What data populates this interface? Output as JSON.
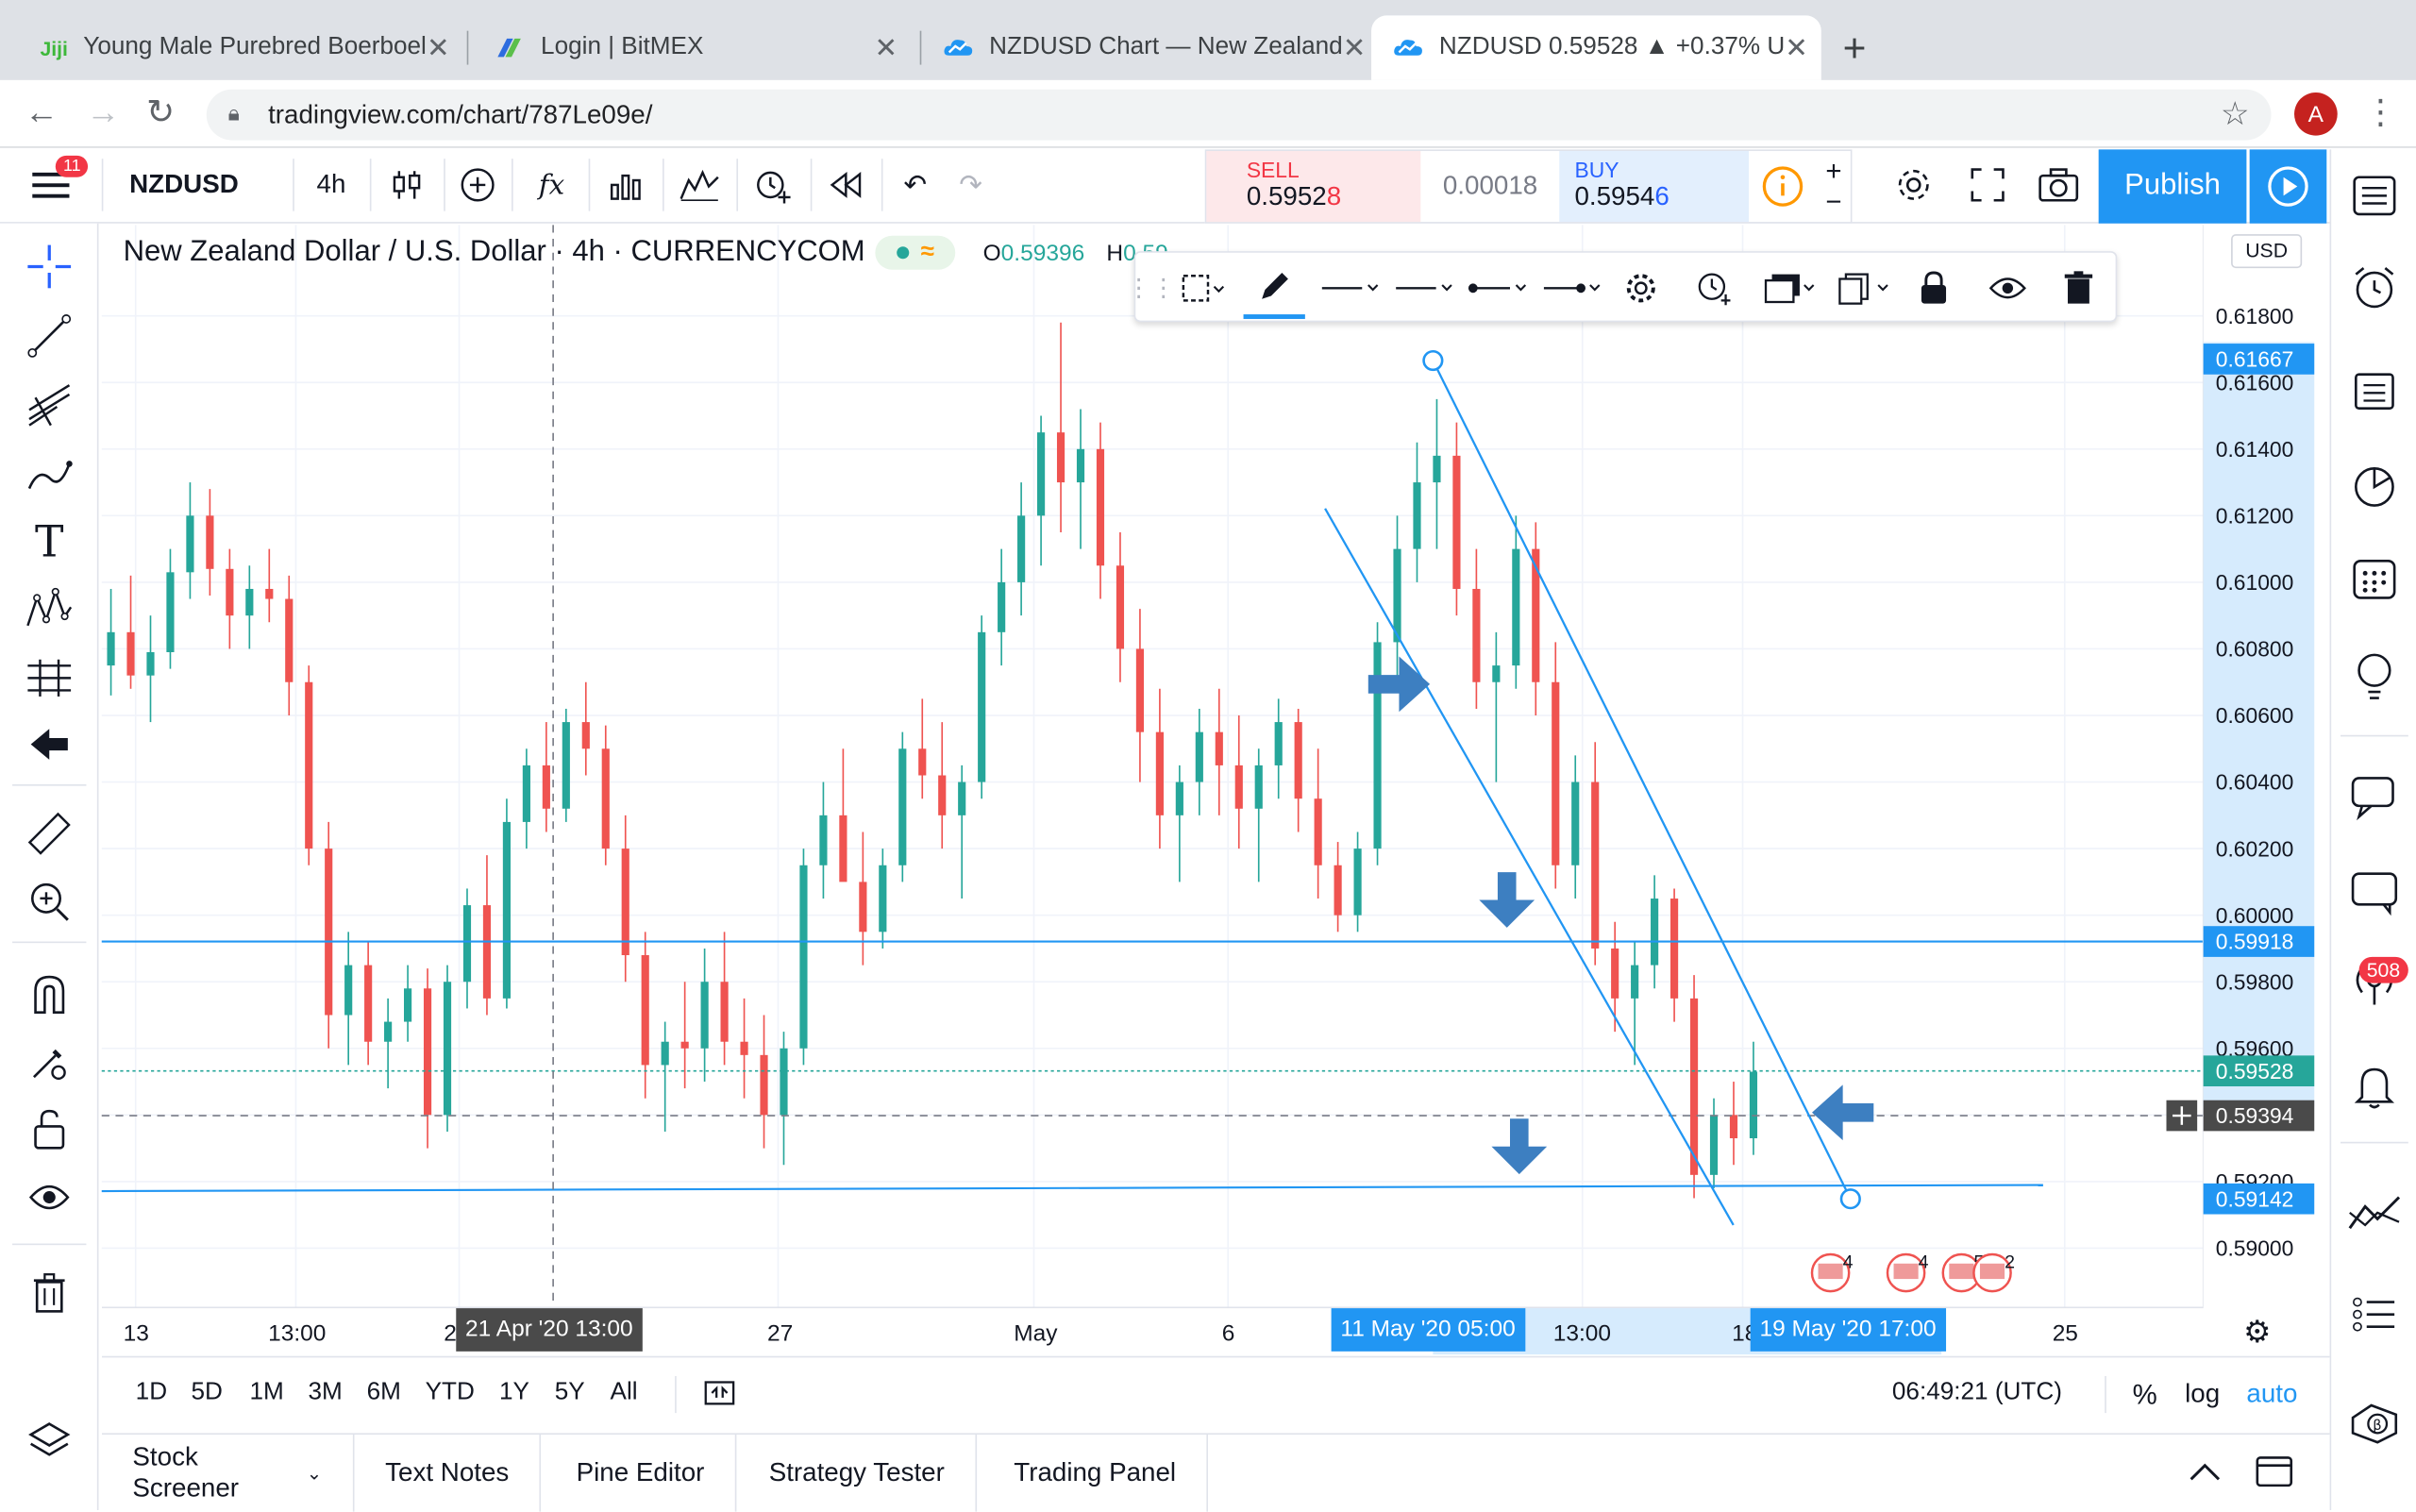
{
  "browser": {
    "tabs": [
      {
        "title": "Young Male Purebred Boerboel",
        "favicon": "Jiji"
      },
      {
        "title": "Login | BitMEX",
        "favicon": "bitmex-icon"
      },
      {
        "title": "NZDUSD Chart — New Zealand",
        "favicon": "tradingview-cloud-icon"
      },
      {
        "title": "NZDUSD 0.59528 ▲ +0.37% U",
        "favicon": "tradingview-cloud-icon",
        "active": true
      }
    ],
    "url": "tradingview.com/chart/787Le09e/",
    "avatar_letter": "A"
  },
  "toolbar": {
    "menu_badge": "11",
    "symbol": "NZDUSD",
    "interval": "4h",
    "sell_label": "SELL",
    "sell_price": "0.5952",
    "sell_price_last": "8",
    "spread": "0.00018",
    "buy_label": "BUY",
    "buy_price": "0.5954",
    "buy_price_last": "6",
    "publish_label": "Publish"
  },
  "legend": {
    "title": "New Zealand Dollar / U.S. Dollar · 4h · CURRENCYCOM",
    "open_label": "O",
    "open_value": "0.59396",
    "high_label": "H",
    "high_value": "0.59...",
    "currency": "USD"
  },
  "price_axis": {
    "ticks": [
      "0.61800",
      "0.61600",
      "0.61400",
      "0.61200",
      "0.61000",
      "0.60800",
      "0.60600",
      "0.60400",
      "0.60200",
      "0.60000",
      "0.59800",
      "0.59600",
      "0.59200",
      "0.59000"
    ],
    "tags": [
      {
        "value": "0.61667",
        "color": "#2196f3"
      },
      {
        "value": "0.59918",
        "color": "#2196f3"
      },
      {
        "value": "0.59528",
        "color": "#26a69a"
      },
      {
        "value": "0.59394",
        "color": "#4a4a4a"
      },
      {
        "value": "0.59142",
        "color": "#2196f3"
      }
    ]
  },
  "time_axis": {
    "labels": [
      "13",
      "13:00",
      "2",
      "27",
      "May",
      "6",
      "13:00",
      "18",
      "25"
    ],
    "selected": [
      {
        "label": "21 Apr '20   13:00",
        "color": "#4a4a4a"
      },
      {
        "label": "11 May '20   05:00",
        "color": "#2196f3"
      },
      {
        "label": "19 May '20   17:00",
        "color": "#2196f3"
      }
    ]
  },
  "events": [
    {
      "count": "4"
    },
    {
      "count": "4"
    },
    {
      "count": "5"
    },
    {
      "count": "2"
    }
  ],
  "range_bar": {
    "ranges": [
      "1D",
      "5D",
      "1M",
      "3M",
      "6M",
      "YTD",
      "1Y",
      "5Y",
      "All"
    ],
    "clock": "06:49:21 (UTC)",
    "percent": "%",
    "log": "log",
    "auto": "auto"
  },
  "bottom_tabs": [
    "Stock Screener",
    "Text Notes",
    "Pine Editor",
    "Strategy Tester",
    "Trading Panel"
  ],
  "right_badge": "508",
  "chart_data": {
    "type": "candlestick",
    "symbol": "NZDUSD",
    "interval": "4h",
    "ylim": [
      0.5895,
      0.6195
    ],
    "candles_ohlc": [
      [
        0.6075,
        0.6098,
        0.6066,
        0.6085
      ],
      [
        0.6085,
        0.6102,
        0.6068,
        0.6072
      ],
      [
        0.6072,
        0.609,
        0.6058,
        0.6079
      ],
      [
        0.6079,
        0.611,
        0.6074,
        0.6103
      ],
      [
        0.6103,
        0.613,
        0.6095,
        0.612
      ],
      [
        0.612,
        0.6128,
        0.6096,
        0.6104
      ],
      [
        0.6104,
        0.611,
        0.608,
        0.609
      ],
      [
        0.609,
        0.6105,
        0.608,
        0.6098
      ],
      [
        0.6098,
        0.611,
        0.6088,
        0.6095
      ],
      [
        0.6095,
        0.6102,
        0.606,
        0.607
      ],
      [
        0.607,
        0.6075,
        0.6015,
        0.602
      ],
      [
        0.602,
        0.6028,
        0.596,
        0.597
      ],
      [
        0.597,
        0.5995,
        0.5955,
        0.5985
      ],
      [
        0.5985,
        0.5992,
        0.5955,
        0.5962
      ],
      [
        0.5962,
        0.5975,
        0.5948,
        0.5968
      ],
      [
        0.5968,
        0.5985,
        0.5962,
        0.5978
      ],
      [
        0.5978,
        0.5984,
        0.593,
        0.594
      ],
      [
        0.594,
        0.5985,
        0.5935,
        0.598
      ],
      [
        0.598,
        0.6008,
        0.5972,
        0.6003
      ],
      [
        0.6003,
        0.6018,
        0.597,
        0.5975
      ],
      [
        0.5975,
        0.6035,
        0.5972,
        0.6028
      ],
      [
        0.6028,
        0.605,
        0.602,
        0.6045
      ],
      [
        0.6045,
        0.6058,
        0.6025,
        0.6032
      ],
      [
        0.6032,
        0.6062,
        0.6028,
        0.6058
      ],
      [
        0.6058,
        0.607,
        0.6042,
        0.605
      ],
      [
        0.605,
        0.6057,
        0.6015,
        0.602
      ],
      [
        0.602,
        0.603,
        0.598,
        0.5988
      ],
      [
        0.5988,
        0.5995,
        0.5945,
        0.5955
      ],
      [
        0.5955,
        0.5968,
        0.5935,
        0.5962
      ],
      [
        0.5962,
        0.598,
        0.5948,
        0.596
      ],
      [
        0.596,
        0.599,
        0.595,
        0.598
      ],
      [
        0.598,
        0.5995,
        0.5955,
        0.5962
      ],
      [
        0.5962,
        0.5975,
        0.5945,
        0.5958
      ],
      [
        0.5958,
        0.597,
        0.593,
        0.594
      ],
      [
        0.594,
        0.5965,
        0.5925,
        0.596
      ],
      [
        0.596,
        0.602,
        0.5955,
        0.6015
      ],
      [
        0.6015,
        0.604,
        0.6005,
        0.603
      ],
      [
        0.603,
        0.605,
        0.6015,
        0.601
      ],
      [
        0.601,
        0.6025,
        0.5985,
        0.5995
      ],
      [
        0.5995,
        0.602,
        0.599,
        0.6015
      ],
      [
        0.6015,
        0.6055,
        0.601,
        0.605
      ],
      [
        0.605,
        0.6065,
        0.6035,
        0.6042
      ],
      [
        0.6042,
        0.6058,
        0.602,
        0.603
      ],
      [
        0.603,
        0.6045,
        0.6005,
        0.604
      ],
      [
        0.604,
        0.609,
        0.6035,
        0.6085
      ],
      [
        0.6085,
        0.611,
        0.6075,
        0.61
      ],
      [
        0.61,
        0.613,
        0.609,
        0.612
      ],
      [
        0.612,
        0.615,
        0.6105,
        0.6145
      ],
      [
        0.6145,
        0.6178,
        0.6115,
        0.613
      ],
      [
        0.613,
        0.6152,
        0.611,
        0.614
      ],
      [
        0.614,
        0.6148,
        0.6095,
        0.6105
      ],
      [
        0.6105,
        0.6115,
        0.607,
        0.608
      ],
      [
        0.608,
        0.6092,
        0.604,
        0.6055
      ],
      [
        0.6055,
        0.6068,
        0.602,
        0.603
      ],
      [
        0.603,
        0.6045,
        0.601,
        0.604
      ],
      [
        0.604,
        0.6062,
        0.603,
        0.6055
      ],
      [
        0.6055,
        0.6068,
        0.603,
        0.6045
      ],
      [
        0.6045,
        0.606,
        0.602,
        0.6032
      ],
      [
        0.6032,
        0.605,
        0.601,
        0.6045
      ],
      [
        0.6045,
        0.6065,
        0.6035,
        0.6058
      ],
      [
        0.6058,
        0.6062,
        0.6025,
        0.6035
      ],
      [
        0.6035,
        0.605,
        0.6005,
        0.6015
      ],
      [
        0.6015,
        0.6022,
        0.5995,
        0.6
      ],
      [
        0.6,
        0.6025,
        0.5995,
        0.602
      ],
      [
        0.602,
        0.6088,
        0.6015,
        0.6082
      ],
      [
        0.6082,
        0.612,
        0.607,
        0.611
      ],
      [
        0.611,
        0.6142,
        0.61,
        0.613
      ],
      [
        0.613,
        0.6155,
        0.611,
        0.6138
      ],
      [
        0.6138,
        0.6148,
        0.609,
        0.6098
      ],
      [
        0.6098,
        0.611,
        0.6062,
        0.607
      ],
      [
        0.607,
        0.6085,
        0.604,
        0.6075
      ],
      [
        0.6075,
        0.612,
        0.6068,
        0.611
      ],
      [
        0.611,
        0.6118,
        0.606,
        0.607
      ],
      [
        0.607,
        0.6082,
        0.6008,
        0.6015
      ],
      [
        0.6015,
        0.6048,
        0.6005,
        0.604
      ],
      [
        0.604,
        0.6052,
        0.5985,
        0.599
      ],
      [
        0.599,
        0.5998,
        0.5965,
        0.5975
      ],
      [
        0.5975,
        0.5992,
        0.5955,
        0.5985
      ],
      [
        0.5985,
        0.6012,
        0.5978,
        0.6005
      ],
      [
        0.6005,
        0.6008,
        0.5968,
        0.5975
      ],
      [
        0.5975,
        0.5982,
        0.5915,
        0.5922
      ],
      [
        0.5922,
        0.5945,
        0.5918,
        0.594
      ],
      [
        0.594,
        0.595,
        0.5925,
        0.5933
      ],
      [
        0.5933,
        0.5962,
        0.5928,
        0.5953
      ]
    ],
    "annotations": {
      "horizontal_lines": [
        0.59918,
        0.59142
      ],
      "channel": "descending channel with arrows"
    }
  }
}
